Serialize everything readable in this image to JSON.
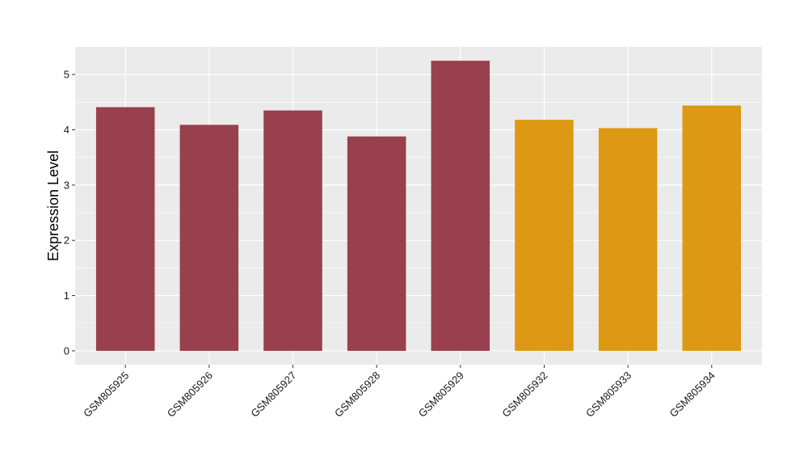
{
  "chart_data": {
    "type": "bar",
    "title": "",
    "xlabel": "",
    "ylabel": "Expression Level",
    "categories": [
      "GSM805925",
      "GSM805926",
      "GSM805927",
      "GSM805928",
      "GSM805929",
      "GSM805932",
      "GSM805933",
      "GSM805934"
    ],
    "values": [
      4.41,
      4.09,
      4.35,
      3.88,
      5.25,
      4.18,
      4.03,
      4.44
    ],
    "groups": [
      1,
      1,
      1,
      1,
      1,
      2,
      2,
      2
    ],
    "group_colors": {
      "1": "#99404f",
      "2": "#dd9913"
    },
    "ylim": [
      -0.25,
      5.5
    ],
    "yticks": [
      0,
      1,
      2,
      3,
      4,
      5
    ],
    "ytick_labels": [
      "0",
      "1",
      "2",
      "3",
      "4",
      "5"
    ],
    "grid": true,
    "panel_background": "#ebebeb",
    "legend": "none"
  }
}
